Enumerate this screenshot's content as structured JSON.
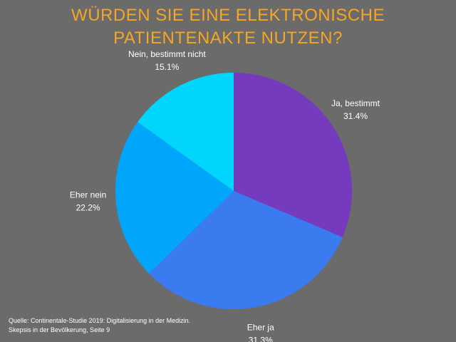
{
  "chart_data": {
    "type": "pie",
    "title": "WÜRDEN SIE EINE ELEKTRONISCHE PATIENTENAKTE NUTZEN?",
    "categories": [
      "Ja, bestimmt",
      "Eher ja",
      "Eher nein",
      "Nein, bestimmt nicht"
    ],
    "values": [
      31.4,
      31.3,
      22.2,
      15.1
    ],
    "value_labels": [
      "31.4%",
      "31.3%",
      "22.2%",
      "15.1%"
    ],
    "colors": [
      "#763abe",
      "#3a7bf0",
      "#00a6fb",
      "#00d6fd"
    ],
    "source": [
      "Quelle: Continentale-Studie 2019: Digitalisierung in der Medizin.",
      "Skepsis in der Bevölkerung, Seite 9"
    ]
  }
}
